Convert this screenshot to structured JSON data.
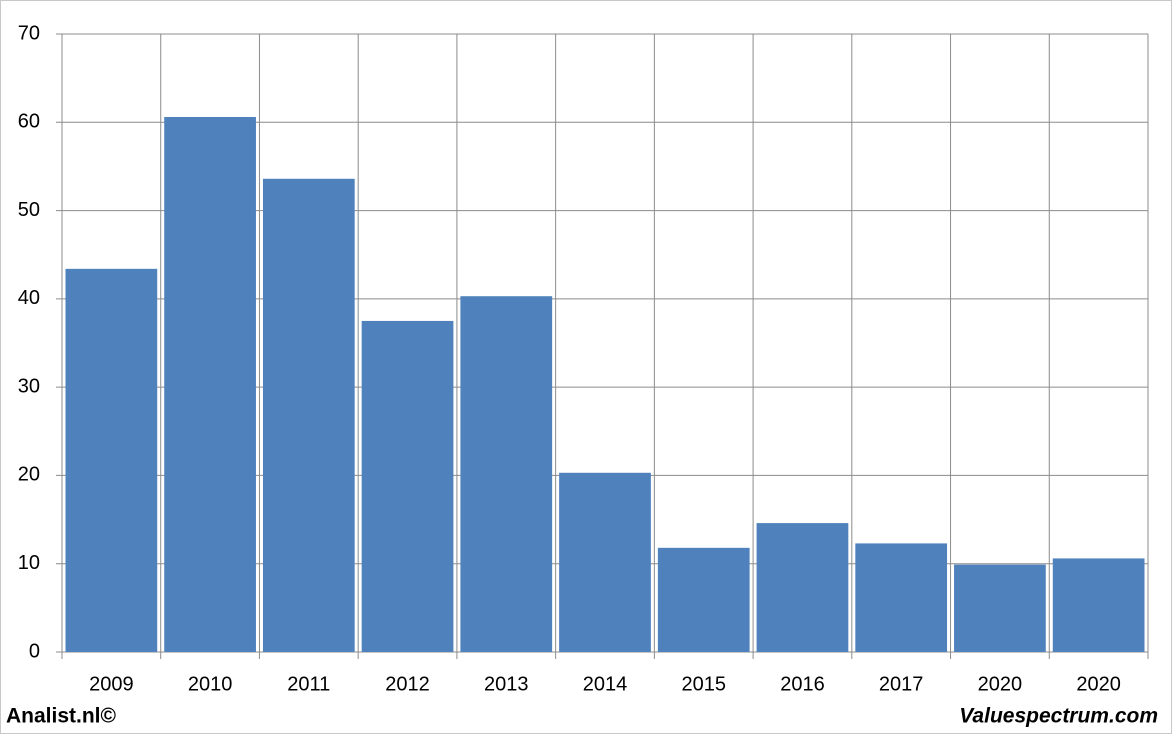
{
  "chart_data": {
    "type": "bar",
    "categories": [
      "2009",
      "2010",
      "2011",
      "2012",
      "2013",
      "2014",
      "2015",
      "2016",
      "2017",
      "2020",
      "2020"
    ],
    "values": [
      43.4,
      60.6,
      53.6,
      37.5,
      40.3,
      20.3,
      11.8,
      14.6,
      12.3,
      9.9,
      10.6
    ],
    "color": "#4f81bd",
    "ylim": [
      0,
      70
    ],
    "yticks": [
      0,
      10,
      20,
      30,
      40,
      50,
      60,
      70
    ],
    "grid": true,
    "footer_left": "Analist.nl©",
    "footer_right": "Valuespectrum.com"
  }
}
